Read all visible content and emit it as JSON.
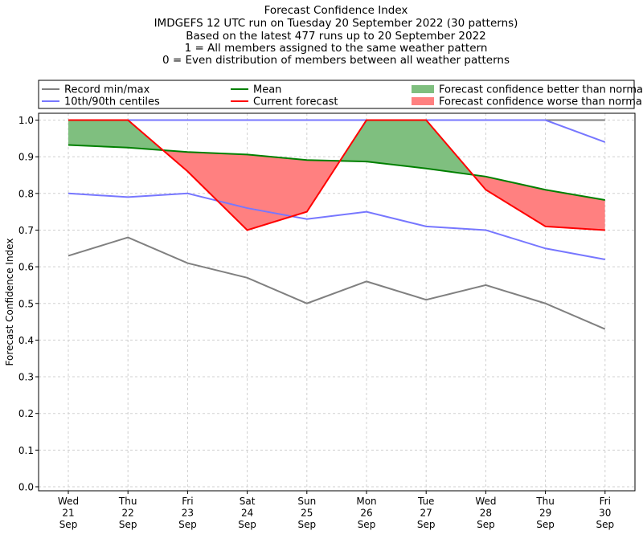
{
  "chart_data": {
    "type": "line",
    "title_lines": [
      "Forecast Confidence Index",
      "IMDGEFS 12 UTC run on Tuesday 20 September 2022 (30 patterns)",
      "Based on the latest 477 runs up to 20 September 2022",
      "1 = All members assigned to the same weather pattern",
      "0 = Even distribution of members between all weather patterns"
    ],
    "xlabel": "",
    "ylabel": "Forecast Confidence Index",
    "ylim": [
      0,
      1.0
    ],
    "yticks": [
      "0.0",
      "0.1",
      "0.2",
      "0.3",
      "0.4",
      "0.5",
      "0.6",
      "0.7",
      "0.8",
      "0.9",
      "1.0"
    ],
    "categories": [
      "Wed\n21\nSep",
      "Thu\n22\nSep",
      "Fri\n23\nSep",
      "Sat\n24\nSep",
      "Sun\n25\nSep",
      "Mon\n26\nSep",
      "Tue\n27\nSep",
      "Wed\n28\nSep",
      "Thu\n29\nSep",
      "Fri\n30\nSep"
    ],
    "grid": true,
    "legend_position": "top",
    "series": [
      {
        "name": "Record min/max",
        "key": "record_max",
        "color": "#808080",
        "values": [
          1.0,
          1.0,
          1.0,
          1.0,
          1.0,
          1.0,
          1.0,
          1.0,
          1.0,
          1.0
        ]
      },
      {
        "name": "Record min/max",
        "key": "record_min",
        "color": "#808080",
        "values": [
          0.63,
          0.68,
          0.61,
          0.57,
          0.5,
          0.56,
          0.51,
          0.55,
          0.5,
          0.43
        ]
      },
      {
        "name": "10th/90th centiles",
        "key": "p90",
        "color": "#7777ff",
        "values": [
          1.0,
          1.0,
          1.0,
          1.0,
          1.0,
          1.0,
          1.0,
          1.0,
          1.0,
          0.94
        ]
      },
      {
        "name": "10th/90th centiles",
        "key": "p10",
        "color": "#7777ff",
        "values": [
          0.8,
          0.79,
          0.8,
          0.76,
          0.73,
          0.75,
          0.71,
          0.7,
          0.65,
          0.62
        ]
      },
      {
        "name": "Mean",
        "key": "mean",
        "color": "#008000",
        "values": [
          0.932,
          0.925,
          0.913,
          0.906,
          0.891,
          0.887,
          0.868,
          0.846,
          0.81,
          0.782
        ]
      },
      {
        "name": "Current forecast",
        "key": "current",
        "color": "#ff0000",
        "values": [
          1.0,
          1.0,
          0.86,
          0.7,
          0.75,
          1.0,
          1.0,
          0.81,
          0.71,
          0.7
        ]
      }
    ],
    "fills": [
      {
        "name": "Forecast confidence better than normal",
        "color": "#7fbf7f"
      },
      {
        "name": "Forecast confidence worse than normal",
        "color": "#ff8080"
      }
    ],
    "legend": [
      {
        "label": "Record min/max",
        "color": "#808080",
        "kind": "line"
      },
      {
        "label": "10th/90th centiles",
        "color": "#7777ff",
        "kind": "line"
      },
      {
        "label": "Mean",
        "color": "#008000",
        "kind": "line"
      },
      {
        "label": "Current forecast",
        "color": "#ff0000",
        "kind": "line"
      },
      {
        "label": "Forecast confidence better than normal",
        "color": "#7fbf7f",
        "kind": "patch"
      },
      {
        "label": "Forecast confidence worse than normal",
        "color": "#ff8080",
        "kind": "patch"
      }
    ]
  }
}
